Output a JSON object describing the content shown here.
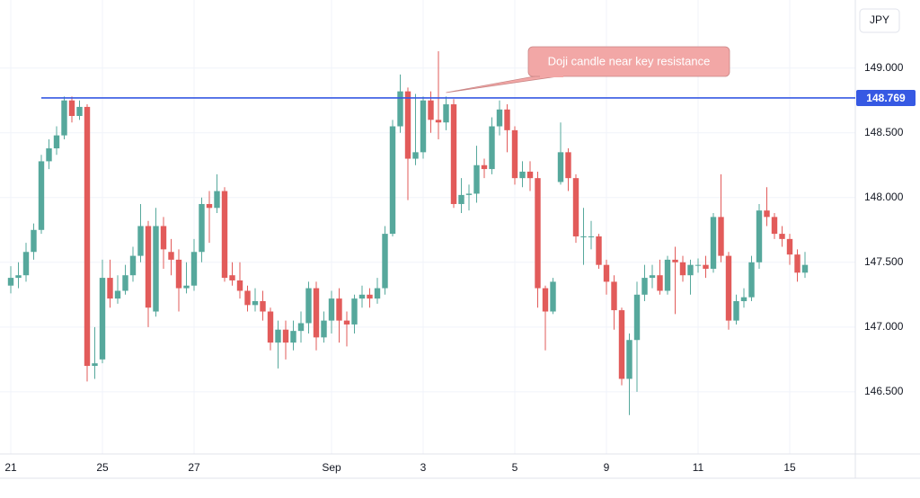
{
  "chart_data": {
    "type": "candlestick",
    "currency": "JPY",
    "x": [
      "21",
      null,
      null,
      null,
      null,
      null,
      null,
      null,
      null,
      null,
      null,
      null,
      "25",
      null,
      null,
      null,
      null,
      null,
      null,
      null,
      null,
      null,
      null,
      null,
      "27",
      null,
      null,
      null,
      null,
      null,
      null,
      null,
      null,
      null,
      null,
      null,
      null,
      null,
      null,
      null,
      null,
      null,
      "Sep",
      null,
      null,
      null,
      null,
      null,
      null,
      null,
      null,
      null,
      null,
      null,
      "3",
      null,
      null,
      null,
      null,
      null,
      null,
      null,
      null,
      null,
      null,
      null,
      "5",
      null,
      null,
      null,
      null,
      null,
      null,
      null,
      null,
      null,
      null,
      null,
      "9",
      null,
      null,
      null,
      null,
      null,
      null,
      null,
      null,
      null,
      null,
      null,
      "11",
      null,
      null,
      null,
      null,
      null,
      null,
      null,
      null,
      null,
      null,
      null,
      "15",
      null,
      null
    ],
    "open": [
      147.32,
      147.38,
      147.4,
      147.58,
      147.75,
      148.28,
      148.38,
      148.48,
      148.75,
      148.63,
      148.7,
      146.7,
      146.75,
      147.38,
      147.22,
      147.28,
      147.4,
      147.55,
      147.78,
      147.12,
      147.78,
      147.58,
      147.52,
      147.3,
      147.32,
      147.58,
      147.95,
      147.92,
      148.05,
      147.4,
      147.36,
      147.28,
      147.17,
      147.2,
      147.12,
      146.88,
      146.98,
      146.88,
      146.97,
      147.03,
      147.3,
      146.92,
      147.05,
      147.22,
      147.05,
      147.02,
      147.22,
      147.25,
      147.22,
      147.3,
      147.72,
      148.55,
      148.82,
      148.3,
      148.35,
      148.75,
      148.6,
      148.58,
      148.72,
      147.95,
      148.02,
      148.03,
      148.25,
      148.22,
      148.55,
      148.68,
      148.52,
      148.15,
      148.2,
      148.15,
      147.3,
      147.12,
      148.12,
      148.35,
      148.15,
      147.7,
      147.7,
      147.7,
      147.48,
      147.35,
      147.13,
      146.6,
      146.9,
      147.25,
      147.38,
      147.4,
      147.28,
      147.52,
      147.5,
      147.4,
      147.48,
      147.48,
      147.45,
      147.85,
      147.55,
      147.05,
      147.2,
      147.23,
      147.5,
      147.9,
      147.85,
      147.72,
      147.68,
      147.56,
      147.42
    ],
    "high": [
      147.47,
      147.5,
      147.65,
      147.8,
      148.33,
      148.45,
      148.55,
      148.78,
      148.78,
      148.75,
      148.72,
      147.0,
      147.52,
      147.52,
      147.4,
      147.48,
      147.62,
      147.95,
      147.82,
      147.92,
      147.85,
      147.68,
      147.6,
      147.5,
      147.68,
      148.0,
      148.05,
      148.18,
      148.08,
      147.5,
      147.5,
      147.32,
      147.3,
      147.28,
      147.15,
      147.05,
      147.05,
      147.05,
      147.12,
      147.35,
      147.35,
      147.12,
      147.28,
      147.3,
      147.12,
      147.25,
      147.32,
      147.3,
      147.38,
      147.78,
      148.6,
      148.95,
      148.85,
      148.8,
      148.78,
      148.82,
      149.13,
      148.78,
      148.76,
      148.15,
      148.1,
      148.4,
      148.3,
      148.62,
      148.75,
      148.72,
      148.55,
      148.28,
      148.28,
      148.2,
      147.32,
      147.38,
      148.58,
      148.38,
      148.18,
      147.92,
      147.82,
      147.72,
      147.52,
      147.4,
      147.15,
      146.95,
      147.35,
      147.48,
      147.48,
      147.52,
      147.55,
      147.62,
      147.55,
      147.52,
      147.53,
      147.55,
      147.88,
      148.18,
      147.58,
      147.25,
      147.3,
      147.55,
      147.95,
      148.08,
      147.88,
      147.78,
      147.72,
      147.6,
      147.58
    ],
    "low": [
      147.26,
      147.3,
      147.35,
      147.52,
      147.72,
      148.22,
      148.33,
      148.45,
      148.58,
      148.6,
      146.58,
      146.6,
      146.72,
      147.15,
      147.18,
      147.25,
      147.35,
      147.5,
      147.0,
      147.08,
      147.45,
      147.4,
      147.12,
      147.26,
      147.28,
      147.5,
      147.65,
      147.88,
      147.35,
      147.32,
      147.22,
      147.12,
      147.12,
      147.05,
      146.82,
      146.68,
      146.75,
      146.82,
      146.88,
      146.95,
      146.82,
      146.88,
      146.95,
      146.88,
      146.85,
      146.95,
      147.15,
      147.15,
      147.18,
      147.25,
      147.7,
      148.5,
      147.98,
      148.25,
      148.3,
      148.5,
      148.45,
      148.52,
      147.92,
      147.88,
      147.9,
      147.96,
      148.15,
      148.18,
      148.48,
      148.35,
      148.1,
      148.08,
      148.05,
      147.15,
      146.82,
      147.1,
      148.1,
      148.05,
      147.65,
      147.48,
      147.6,
      147.45,
      147.25,
      146.98,
      146.55,
      146.32,
      146.5,
      147.2,
      147.3,
      147.25,
      147.25,
      147.1,
      147.35,
      147.25,
      147.42,
      147.38,
      147.42,
      147.5,
      146.98,
      147.02,
      147.15,
      147.2,
      147.45,
      147.78,
      147.68,
      147.62,
      147.48,
      147.35,
      147.38
    ],
    "close": [
      147.38,
      147.4,
      147.58,
      147.75,
      148.28,
      148.38,
      148.48,
      148.75,
      148.63,
      148.7,
      146.7,
      146.72,
      147.38,
      147.22,
      147.28,
      147.4,
      147.55,
      147.78,
      147.15,
      147.78,
      147.6,
      147.52,
      147.3,
      147.32,
      147.58,
      147.95,
      147.92,
      148.05,
      147.38,
      147.36,
      147.28,
      147.17,
      147.2,
      147.12,
      146.88,
      146.98,
      146.88,
      146.97,
      147.03,
      147.3,
      146.92,
      147.05,
      147.22,
      147.05,
      147.02,
      147.22,
      147.25,
      147.22,
      147.3,
      147.72,
      148.55,
      148.82,
      148.3,
      148.35,
      148.75,
      148.6,
      148.58,
      148.72,
      147.95,
      148.02,
      148.03,
      148.25,
      148.22,
      148.55,
      148.68,
      148.52,
      148.15,
      148.2,
      148.15,
      147.3,
      147.12,
      147.35,
      148.35,
      148.15,
      147.7,
      147.7,
      147.7,
      147.48,
      147.35,
      147.13,
      146.6,
      146.9,
      147.25,
      147.38,
      147.4,
      147.28,
      147.52,
      147.5,
      147.4,
      147.48,
      147.48,
      147.45,
      147.85,
      147.55,
      147.05,
      147.2,
      147.23,
      147.5,
      147.9,
      147.85,
      147.72,
      147.68,
      147.56,
      147.42,
      147.48
    ],
    "up_color": "#56a89c",
    "down_color": "#e25b5a",
    "level": 148.769,
    "level_color": "#3659e3",
    "annotation": "Doji candle near key resistance",
    "annotation_color": "#f2a7a6",
    "ylim": [
      146.02,
      149.47
    ],
    "yticks": [
      {
        "value": 146.5,
        "label": "146.500"
      },
      {
        "value": 147,
        "label": "147.000"
      },
      {
        "value": 147.5,
        "label": "147.500"
      },
      {
        "value": 148,
        "label": "148.000"
      },
      {
        "value": 148.5,
        "label": "148.500"
      },
      {
        "value": 149,
        "label": "149.000"
      }
    ],
    "grid": true
  }
}
